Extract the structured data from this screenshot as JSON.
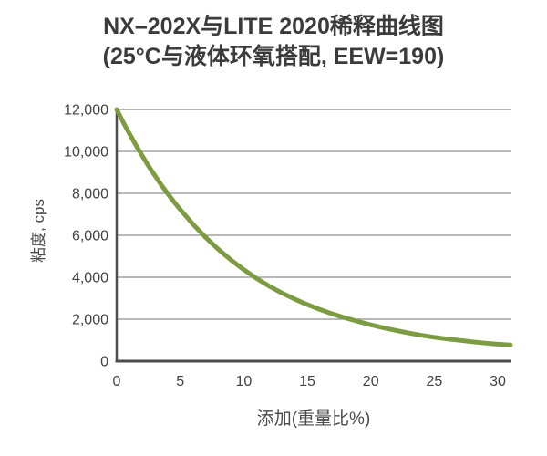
{
  "title": {
    "line1": "NX–202X与LITE 2020稀释曲线图",
    "line2": "(25°C与液体环氧搭配, EEW=190)"
  },
  "colors": {
    "curve": "#7d9b41",
    "grid": "#8f8f8f",
    "axis": "#4d4d4d",
    "title_text": "#3b3b3b",
    "tick_text": "#424242",
    "background": "#ffffff"
  },
  "chart_data": {
    "type": "line",
    "title": "NX–202X与LITE 2020稀释曲线图",
    "subtitle": "(25°C与液体环氧搭配, EEW=190)",
    "xlabel": "添加(重量比%)",
    "ylabel": "粘度, cps",
    "xlim": [
      0,
      31
    ],
    "ylim": [
      0,
      12000
    ],
    "x_ticks": [
      0,
      5,
      10,
      15,
      20,
      25,
      30
    ],
    "x_tick_labels": [
      "0",
      "5",
      "10",
      "15",
      "20",
      "25",
      "30"
    ],
    "y_ticks": [
      0,
      2000,
      4000,
      6000,
      8000,
      10000,
      12000
    ],
    "y_tick_labels": [
      "0",
      "2,000",
      "4,000",
      "6,000",
      "8,000",
      "10,000",
      "12,000"
    ],
    "grid": "horizontal",
    "legend_position": "none",
    "series": [
      {
        "name": "NX-202X与LITE 2020稀释曲线",
        "color": "#7d9b41",
        "stroke_width": 5,
        "x": [
          0,
          0.5,
          1,
          1.5,
          2,
          2.5,
          3,
          3.5,
          4,
          4.5,
          5,
          6,
          7,
          8,
          9,
          10,
          11,
          12,
          13,
          14,
          15,
          16,
          17,
          18,
          19,
          20,
          21,
          22,
          23,
          24,
          25,
          26,
          27,
          28,
          29,
          30,
          31
        ],
        "y": [
          12000,
          11400,
          10850,
          10310,
          9800,
          9310,
          8850,
          8410,
          8000,
          7600,
          7230,
          6530,
          5900,
          5330,
          4820,
          4360,
          3950,
          3580,
          3250,
          2960,
          2700,
          2460,
          2250,
          2060,
          1890,
          1730,
          1590,
          1460,
          1340,
          1230,
          1140,
          1060,
          990,
          920,
          860,
          810,
          770
        ]
      }
    ]
  }
}
